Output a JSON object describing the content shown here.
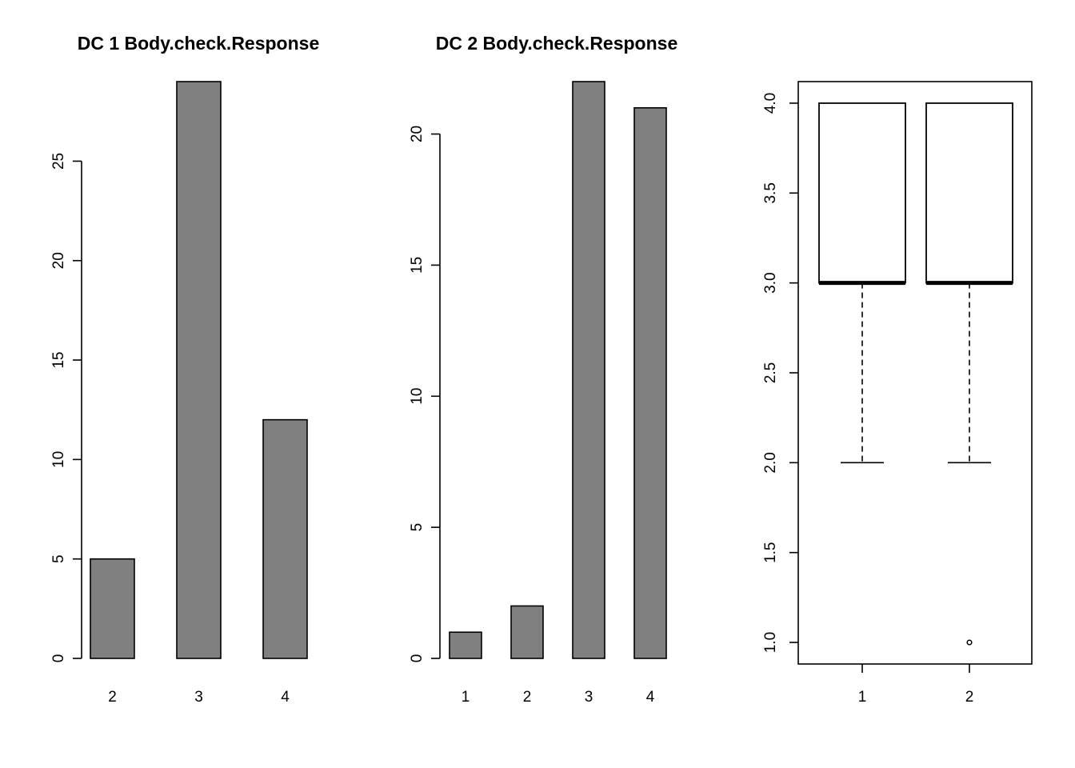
{
  "chart_data": [
    {
      "type": "bar",
      "title": "DC 1 Body.check.Response",
      "categories": [
        "2",
        "3",
        "4"
      ],
      "values": [
        5,
        29,
        12
      ],
      "ylim": [
        0,
        29
      ],
      "yticks": [
        0,
        5,
        10,
        15,
        20,
        25
      ],
      "xlabel": "",
      "ylabel": "",
      "grid": false,
      "bar_color": "#808080"
    },
    {
      "type": "bar",
      "title": "DC 2 Body.check.Response",
      "categories": [
        "1",
        "2",
        "3",
        "4"
      ],
      "values": [
        1,
        2,
        22,
        21
      ],
      "ylim": [
        0,
        22
      ],
      "yticks": [
        0,
        5,
        10,
        15,
        20
      ],
      "xlabel": "",
      "ylabel": "",
      "grid": false,
      "bar_color": "#808080"
    },
    {
      "type": "box",
      "title": "",
      "categories": [
        "1",
        "2"
      ],
      "boxes": [
        {
          "whisker_low": 2.0,
          "q1": 3.0,
          "median": 3.0,
          "q3": 4.0,
          "whisker_high": 4.0,
          "outliers": []
        },
        {
          "whisker_low": 2.0,
          "q1": 3.0,
          "median": 3.0,
          "q3": 4.0,
          "whisker_high": 4.0,
          "outliers": [
            1.0
          ]
        }
      ],
      "ylim": [
        0.88,
        4.12
      ],
      "yticks": [
        "1.0",
        "1.5",
        "2.0",
        "2.5",
        "3.0",
        "3.5",
        "4.0"
      ],
      "xlabel": "",
      "ylabel": "",
      "grid": false
    }
  ]
}
